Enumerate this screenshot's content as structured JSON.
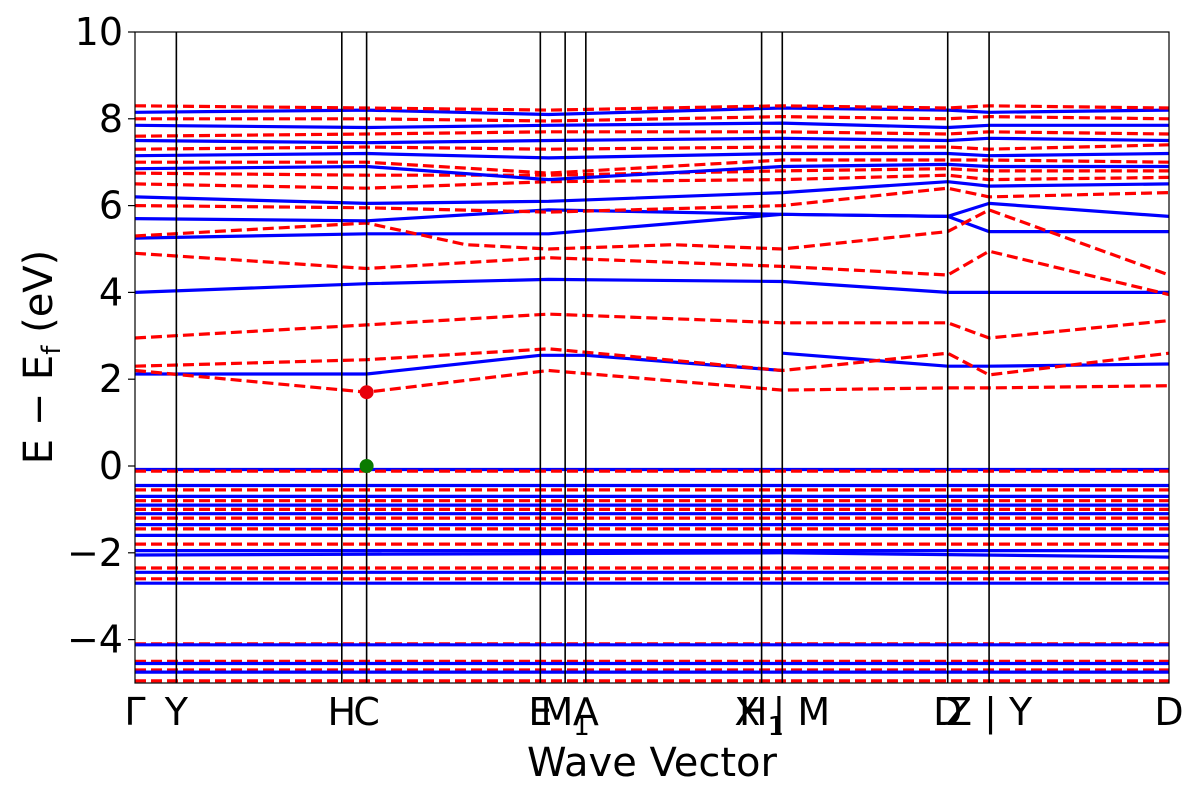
{
  "chart_data": {
    "type": "line",
    "title": "",
    "xlabel": "Wave Vector",
    "ylabel": "E − E_f (eV)",
    "ylabel_main": "E  −  E",
    "ylabel_sub": "f",
    "ylabel_unit": " (eV)",
    "ylim": [
      -5,
      10
    ],
    "yticks": [
      -4,
      -2,
      0,
      2,
      4,
      6,
      8,
      10
    ],
    "ytick_labels": [
      "−4",
      "−2",
      "0",
      "2",
      "4",
      "6",
      "8",
      "10"
    ],
    "xlim": [
      0,
      25
    ],
    "grid": false,
    "legend": "none",
    "kpoint_labels": [
      {
        "x": 0.0,
        "label": "Γ",
        "sub": ""
      },
      {
        "x": 1.0,
        "label": "Y",
        "sub": ""
      },
      {
        "x": 5.0,
        "label": "H",
        "sub": ""
      },
      {
        "x": 5.6,
        "label": "C",
        "sub": ""
      },
      {
        "x": 9.8,
        "label": "E",
        "sub": ""
      },
      {
        "x": 10.4,
        "label": "M",
        "sub": "1"
      },
      {
        "x": 10.9,
        "label": "A",
        "sub": ""
      },
      {
        "x": 15.15,
        "label": "H",
        "sub": "1"
      },
      {
        "x": 15.65,
        "label": "X | M",
        "sub": ""
      },
      {
        "x": 19.65,
        "label": "D",
        "sub": ""
      },
      {
        "x": 20.65,
        "label": "Z | Y",
        "sub": ""
      },
      {
        "x": 25.0,
        "label": "D",
        "sub": ""
      }
    ],
    "series_styles": [
      {
        "color": "#0000ff",
        "dash": "solid"
      },
      {
        "color": "#ff0000",
        "dash": "dashed"
      }
    ],
    "series": [
      {
        "style": 0,
        "x": [
          0,
          5.6,
          9.8,
          10.9,
          15.65
        ],
        "y": [
          2.12,
          2.12,
          2.55,
          2.55,
          2.2
        ]
      },
      {
        "style": 0,
        "x": [
          15.65,
          19.65,
          20.65,
          25
        ],
        "y": [
          2.6,
          2.3,
          2.3,
          2.35
        ]
      },
      {
        "style": 1,
        "x": [
          0,
          5.6,
          10,
          15.65,
          19.65,
          20.65,
          25
        ],
        "y": [
          2.2,
          1.7,
          2.2,
          1.75,
          1.8,
          1.8,
          1.85
        ]
      },
      {
        "style": 1,
        "x": [
          0,
          5.6,
          10,
          15.65,
          19.65,
          20.65,
          25
        ],
        "y": [
          2.3,
          2.45,
          2.7,
          2.2,
          2.6,
          2.1,
          2.6
        ]
      },
      {
        "style": 1,
        "x": [
          0,
          5.6,
          10,
          15.65,
          19.65,
          20.65,
          25
        ],
        "y": [
          2.95,
          3.25,
          3.5,
          3.3,
          3.3,
          2.95,
          3.35
        ]
      },
      {
        "style": 0,
        "x": [
          0,
          5.6,
          10,
          15.65,
          19.65,
          20.65,
          25
        ],
        "y": [
          4.0,
          4.2,
          4.3,
          4.25,
          4.0,
          4.0,
          4.0
        ]
      },
      {
        "style": 1,
        "x": [
          0,
          5.6,
          10,
          15.65,
          19.65,
          20.65,
          25
        ],
        "y": [
          4.9,
          4.55,
          4.8,
          4.6,
          4.4,
          4.95,
          3.95
        ]
      },
      {
        "style": 0,
        "x": [
          0,
          5.6,
          10,
          15.65,
          19.65,
          20.65,
          25
        ],
        "y": [
          5.25,
          5.35,
          5.35,
          5.8,
          5.75,
          5.4,
          5.4
        ]
      },
      {
        "style": 1,
        "x": [
          0,
          5.6,
          8,
          10,
          13,
          15.65,
          19.65,
          20.65,
          25
        ],
        "y": [
          5.3,
          5.6,
          5.1,
          5.0,
          5.1,
          5.0,
          5.4,
          5.9,
          4.4
        ]
      },
      {
        "style": 0,
        "x": [
          0,
          5.6,
          10,
          15.65,
          19.65,
          20.65,
          25
        ],
        "y": [
          5.7,
          5.65,
          5.9,
          5.8,
          5.75,
          6.05,
          5.75
        ]
      },
      {
        "style": 1,
        "x": [
          0,
          5.6,
          10,
          15.65,
          19.65,
          20.65,
          25
        ],
        "y": [
          6.0,
          5.95,
          5.85,
          6.0,
          6.4,
          6.2,
          6.3
        ]
      },
      {
        "style": 0,
        "x": [
          0,
          5.6,
          10,
          15.65,
          19.65,
          20.65,
          25
        ],
        "y": [
          6.2,
          6.05,
          6.1,
          6.3,
          6.55,
          6.45,
          6.5
        ]
      },
      {
        "style": 1,
        "x": [
          0,
          5.6,
          10,
          15.65,
          19.65,
          20.65,
          25
        ],
        "y": [
          6.5,
          6.4,
          6.55,
          6.6,
          6.7,
          6.6,
          6.65
        ]
      },
      {
        "style": 1,
        "x": [
          0,
          5.6,
          10,
          15.65,
          19.65,
          20.65,
          25
        ],
        "y": [
          6.75,
          6.7,
          6.7,
          6.8,
          6.85,
          6.8,
          6.8
        ]
      },
      {
        "style": 0,
        "x": [
          0,
          5.6,
          10,
          15.65,
          19.65,
          20.65,
          25
        ],
        "y": [
          6.85,
          6.9,
          6.6,
          6.9,
          6.95,
          6.9,
          6.9
        ]
      },
      {
        "style": 1,
        "x": [
          0,
          5.6,
          10,
          15.65,
          19.65,
          20.65,
          25
        ],
        "y": [
          7.0,
          7.0,
          6.75,
          7.05,
          7.05,
          7.05,
          7.0
        ]
      },
      {
        "style": 0,
        "x": [
          0,
          5.6,
          10,
          15.65,
          19.65,
          20.65,
          25
        ],
        "y": [
          7.15,
          7.2,
          7.1,
          7.2,
          7.2,
          7.15,
          7.2
        ]
      },
      {
        "style": 1,
        "x": [
          0,
          5.6,
          10,
          15.65,
          19.65,
          20.65,
          25
        ],
        "y": [
          7.3,
          7.35,
          7.3,
          7.35,
          7.35,
          7.3,
          7.4
        ]
      },
      {
        "style": 0,
        "x": [
          0,
          5.6,
          10,
          15.65,
          19.65,
          20.65,
          25
        ],
        "y": [
          7.5,
          7.45,
          7.5,
          7.55,
          7.5,
          7.55,
          7.5
        ]
      },
      {
        "style": 1,
        "x": [
          0,
          5.6,
          10,
          15.65,
          19.65,
          20.65,
          25
        ],
        "y": [
          7.6,
          7.65,
          7.7,
          7.7,
          7.65,
          7.7,
          7.65
        ]
      },
      {
        "style": 0,
        "x": [
          0,
          5.6,
          10,
          15.65,
          19.65,
          20.65,
          25
        ],
        "y": [
          7.85,
          7.8,
          7.85,
          7.9,
          7.8,
          7.85,
          7.85
        ]
      },
      {
        "style": 1,
        "x": [
          0,
          5.6,
          10,
          15.65,
          19.65,
          20.65,
          25
        ],
        "y": [
          8.0,
          8.0,
          7.95,
          8.05,
          8.0,
          8.05,
          8.0
        ]
      },
      {
        "style": 0,
        "x": [
          0,
          5.6,
          10,
          15.65,
          19.65,
          20.65,
          25
        ],
        "y": [
          8.15,
          8.2,
          8.1,
          8.25,
          8.2,
          8.15,
          8.2
        ]
      },
      {
        "style": 1,
        "x": [
          0,
          5.6,
          10,
          15.65,
          19.65,
          20.65,
          25
        ],
        "y": [
          8.3,
          8.25,
          8.2,
          8.3,
          8.25,
          8.3,
          8.25
        ]
      },
      {
        "style": 0,
        "x": [
          0,
          25
        ],
        "y": [
          -0.08,
          -0.08
        ]
      },
      {
        "style": 1,
        "x": [
          0,
          25
        ],
        "y": [
          -0.12,
          -0.12
        ]
      },
      {
        "style": 0,
        "x": [
          0,
          25
        ],
        "y": [
          -0.45,
          -0.45
        ]
      },
      {
        "style": 1,
        "x": [
          0,
          25
        ],
        "y": [
          -0.55,
          -0.55
        ]
      },
      {
        "style": 0,
        "x": [
          0,
          25
        ],
        "y": [
          -0.7,
          -0.7
        ]
      },
      {
        "style": 1,
        "x": [
          0,
          25
        ],
        "y": [
          -0.8,
          -0.8
        ]
      },
      {
        "style": 0,
        "x": [
          0,
          25
        ],
        "y": [
          -0.9,
          -0.9
        ]
      },
      {
        "style": 1,
        "x": [
          0,
          25
        ],
        "y": [
          -1.0,
          -1.0
        ]
      },
      {
        "style": 0,
        "x": [
          0,
          25
        ],
        "y": [
          -1.1,
          -1.1
        ]
      },
      {
        "style": 1,
        "x": [
          0,
          25
        ],
        "y": [
          -1.2,
          -1.2
        ]
      },
      {
        "style": 0,
        "x": [
          0,
          25
        ],
        "y": [
          -1.35,
          -1.35
        ]
      },
      {
        "style": 1,
        "x": [
          0,
          25
        ],
        "y": [
          -1.45,
          -1.45
        ]
      },
      {
        "style": 0,
        "x": [
          0,
          25
        ],
        "y": [
          -1.6,
          -1.6
        ]
      },
      {
        "style": 1,
        "x": [
          0,
          25
        ],
        "y": [
          -1.8,
          -1.8
        ]
      },
      {
        "style": 0,
        "x": [
          0,
          25
        ],
        "y": [
          -1.95,
          -1.95
        ]
      },
      {
        "style": 0,
        "x": [
          0,
          15.65,
          25
        ],
        "y": [
          -2.05,
          -2.0,
          -2.1
        ]
      },
      {
        "style": 1,
        "x": [
          0,
          25
        ],
        "y": [
          -2.35,
          -2.35
        ]
      },
      {
        "style": 0,
        "x": [
          0,
          25
        ],
        "y": [
          -2.45,
          -2.45
        ]
      },
      {
        "style": 1,
        "x": [
          0,
          25
        ],
        "y": [
          -2.6,
          -2.6
        ]
      },
      {
        "style": 0,
        "x": [
          0,
          25
        ],
        "y": [
          -2.7,
          -2.7
        ]
      },
      {
        "style": 1,
        "x": [
          0,
          25
        ],
        "y": [
          -4.1,
          -4.1
        ]
      },
      {
        "style": 0,
        "x": [
          0,
          25
        ],
        "y": [
          -4.12,
          -4.12
        ]
      },
      {
        "style": 1,
        "x": [
          0,
          25
        ],
        "y": [
          -4.5,
          -4.5
        ]
      },
      {
        "style": 0,
        "x": [
          0,
          25
        ],
        "y": [
          -4.55,
          -4.55
        ]
      },
      {
        "style": 1,
        "x": [
          0,
          25
        ],
        "y": [
          -4.7,
          -4.7
        ]
      },
      {
        "style": 0,
        "x": [
          0,
          25
        ],
        "y": [
          -4.75,
          -4.75
        ]
      },
      {
        "style": 1,
        "x": [
          0,
          25
        ],
        "y": [
          -4.95,
          -4.95
        ]
      }
    ],
    "markers": [
      {
        "x": 5.6,
        "y": 1.7,
        "color": "#e8000b"
      },
      {
        "x": 5.6,
        "y": 0.0,
        "color": "#0a7a00"
      }
    ]
  }
}
